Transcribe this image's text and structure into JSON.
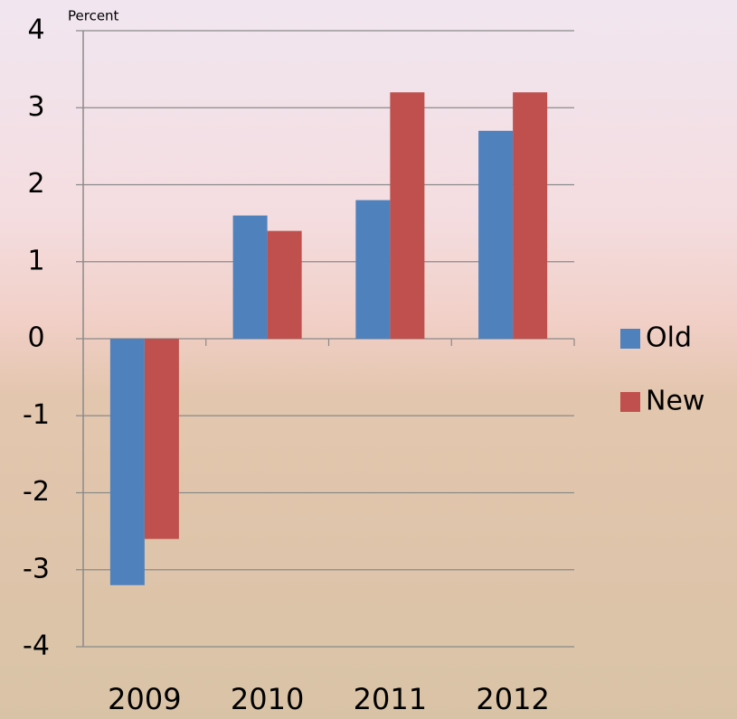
{
  "chart_data": {
    "type": "bar",
    "y_label": "Percent",
    "categories": [
      "2009",
      "2010",
      "2011",
      "2012"
    ],
    "series": [
      {
        "name": "Old",
        "color": "#4f81bd",
        "values": [
          -3.2,
          1.6,
          1.8,
          2.7
        ]
      },
      {
        "name": "New",
        "color": "#c0504d",
        "values": [
          -2.6,
          1.4,
          3.2,
          3.2
        ]
      }
    ],
    "ylim": [
      -4,
      4
    ],
    "yticks": [
      -4,
      -3,
      -2,
      -1,
      0,
      1,
      2,
      3,
      4
    ],
    "grid": true,
    "legend": "right"
  }
}
